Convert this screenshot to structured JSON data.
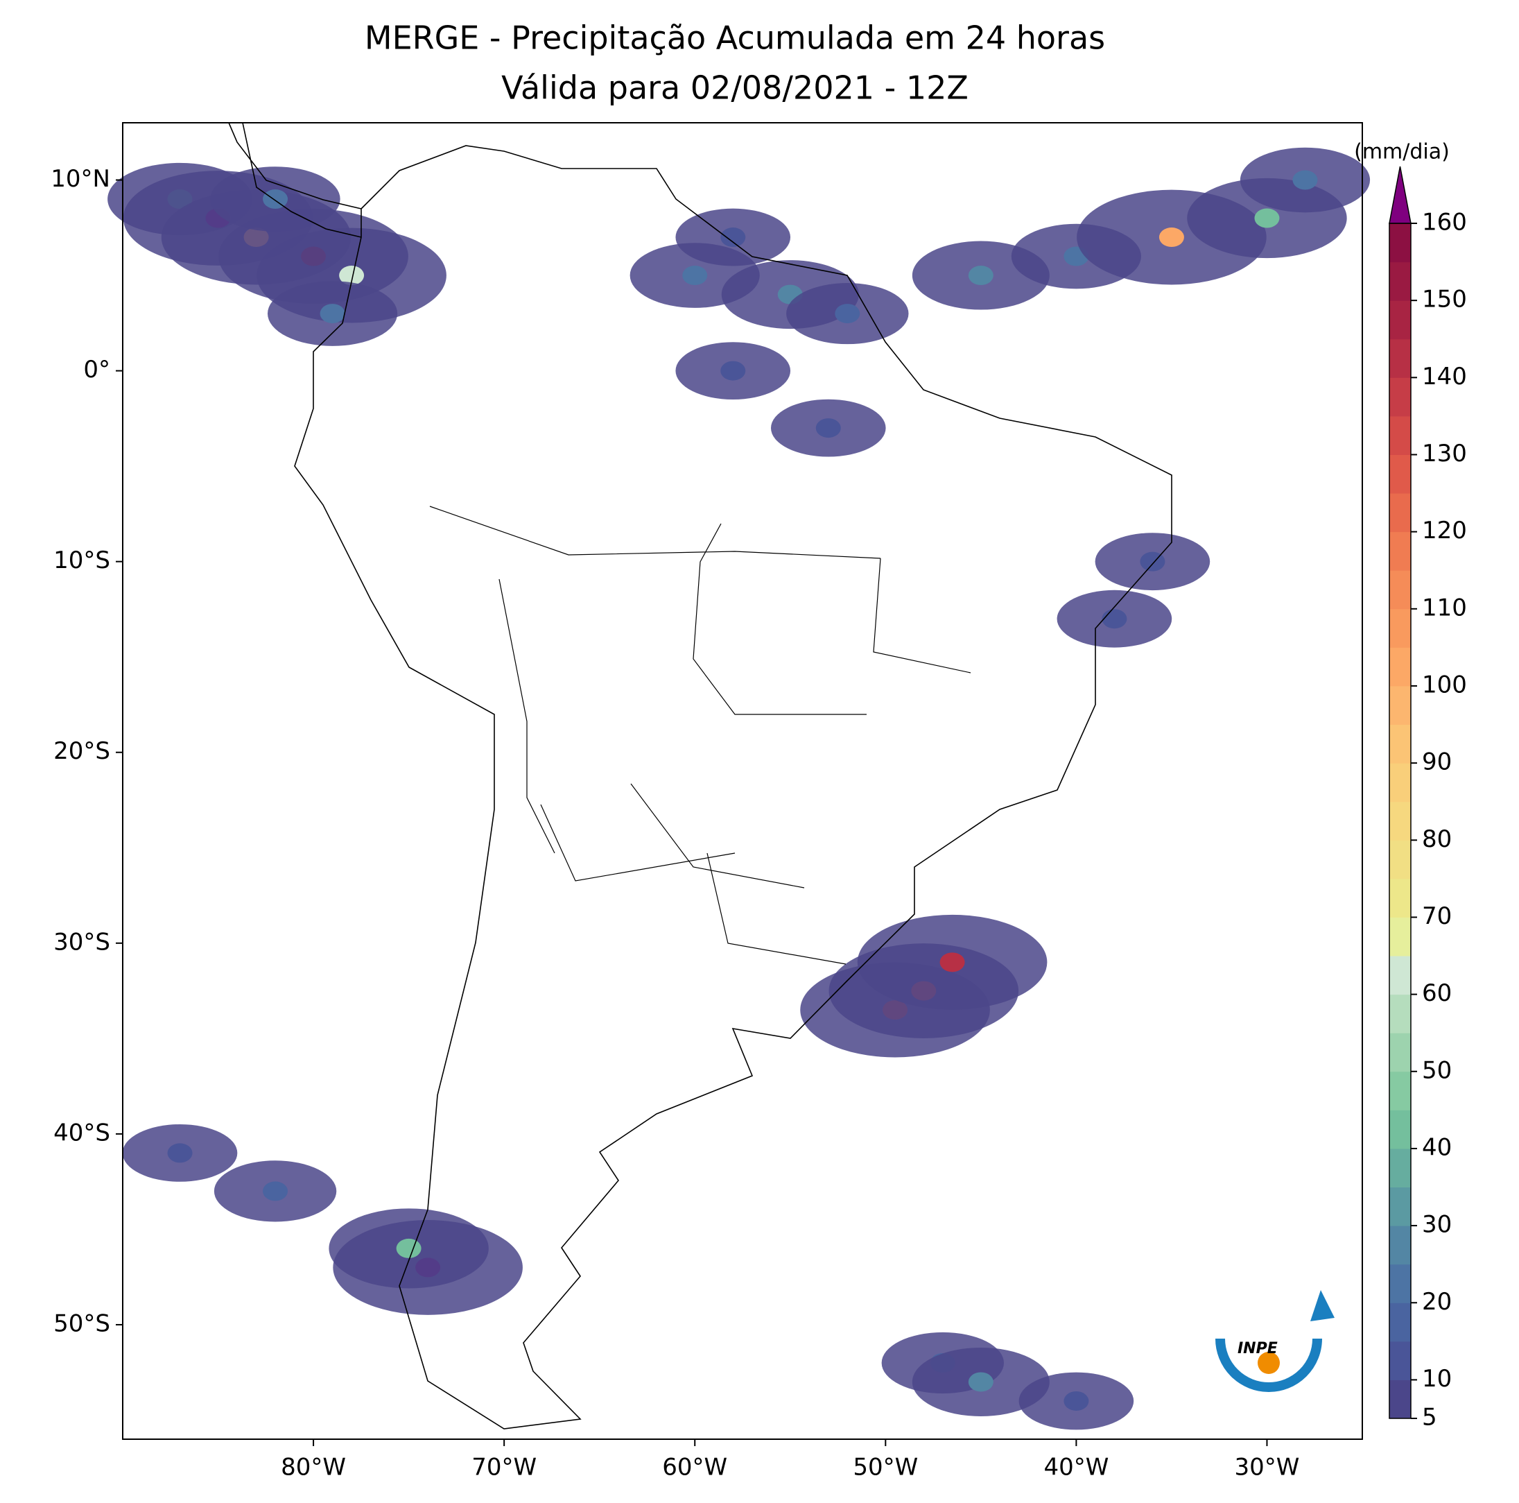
{
  "chart_data": {
    "type": "map",
    "title": "MERGE - Precipitação Acumulada em 24 horas",
    "subtitle": "Válida para 02/08/2021 - 12Z",
    "xlim": [
      -90,
      -25
    ],
    "ylim": [
      -56,
      13
    ],
    "xticks": [
      {
        "value": -80,
        "label": "80°W"
      },
      {
        "value": -70,
        "label": "70°W"
      },
      {
        "value": -60,
        "label": "60°W"
      },
      {
        "value": -50,
        "label": "50°W"
      },
      {
        "value": -40,
        "label": "40°W"
      },
      {
        "value": -30,
        "label": "30°W"
      }
    ],
    "yticks": [
      {
        "value": 10,
        "label": "10°N"
      },
      {
        "value": 0,
        "label": "0°"
      },
      {
        "value": -10,
        "label": "10°S"
      },
      {
        "value": -20,
        "label": "20°S"
      },
      {
        "value": -30,
        "label": "30°S"
      },
      {
        "value": -40,
        "label": "40°S"
      },
      {
        "value": -50,
        "label": "50°S"
      }
    ],
    "cells": {
      "x": [
        -87,
        -85,
        -83,
        -82,
        -80,
        -78,
        -79,
        -60,
        -58,
        -55,
        -52,
        -58,
        -53,
        -45,
        -40,
        -35,
        -30,
        -28,
        -36,
        -38,
        -49.5,
        -48,
        -46.5,
        -74,
        -75,
        -82,
        -87,
        -47,
        -45,
        -40
      ],
      "y": [
        9,
        8,
        7,
        9,
        6,
        5,
        3,
        5,
        7,
        4,
        3,
        0,
        -3,
        5,
        6,
        7,
        8,
        10,
        -10,
        -13,
        -33.5,
        -32.5,
        -31,
        -47,
        -46,
        -43,
        -41,
        -52,
        -53,
        -54
      ],
      "values": [
        30,
        160,
        100,
        20,
        150,
        60,
        20,
        20,
        10,
        25,
        15,
        10,
        10,
        25,
        20,
        100,
        40,
        20,
        10,
        10,
        130,
        130,
        140,
        160,
        40,
        15,
        10,
        15,
        25,
        10
      ]
    },
    "colorbar": {
      "label": "(mm/dia)",
      "lim": [
        5,
        160
      ],
      "ticks": [
        5,
        10,
        20,
        30,
        40,
        50,
        60,
        70,
        80,
        90,
        100,
        110,
        120,
        130,
        140,
        150,
        160
      ],
      "colors": [
        "#4b468a",
        "#4a5598",
        "#4a64a0",
        "#4d74a4",
        "#5386a4",
        "#5b9aa2",
        "#66ad9f",
        "#74bf9d",
        "#86caa2",
        "#9dd3ae",
        "#b5ddbd",
        "#cfe7d4",
        "#e6ef9c",
        "#ede78a",
        "#f1df84",
        "#f6d87f",
        "#f9cf7a",
        "#fbc475",
        "#fcb66f",
        "#fca866",
        "#f99a5e",
        "#f58c58",
        "#f07c52",
        "#e96b4d",
        "#e05a4a",
        "#d44b48",
        "#c63d47",
        "#b73045",
        "#a82443",
        "#9a1a42",
        "#8c1042"
      ],
      "over_color": "#7f007f"
    },
    "logo": "INPE"
  }
}
